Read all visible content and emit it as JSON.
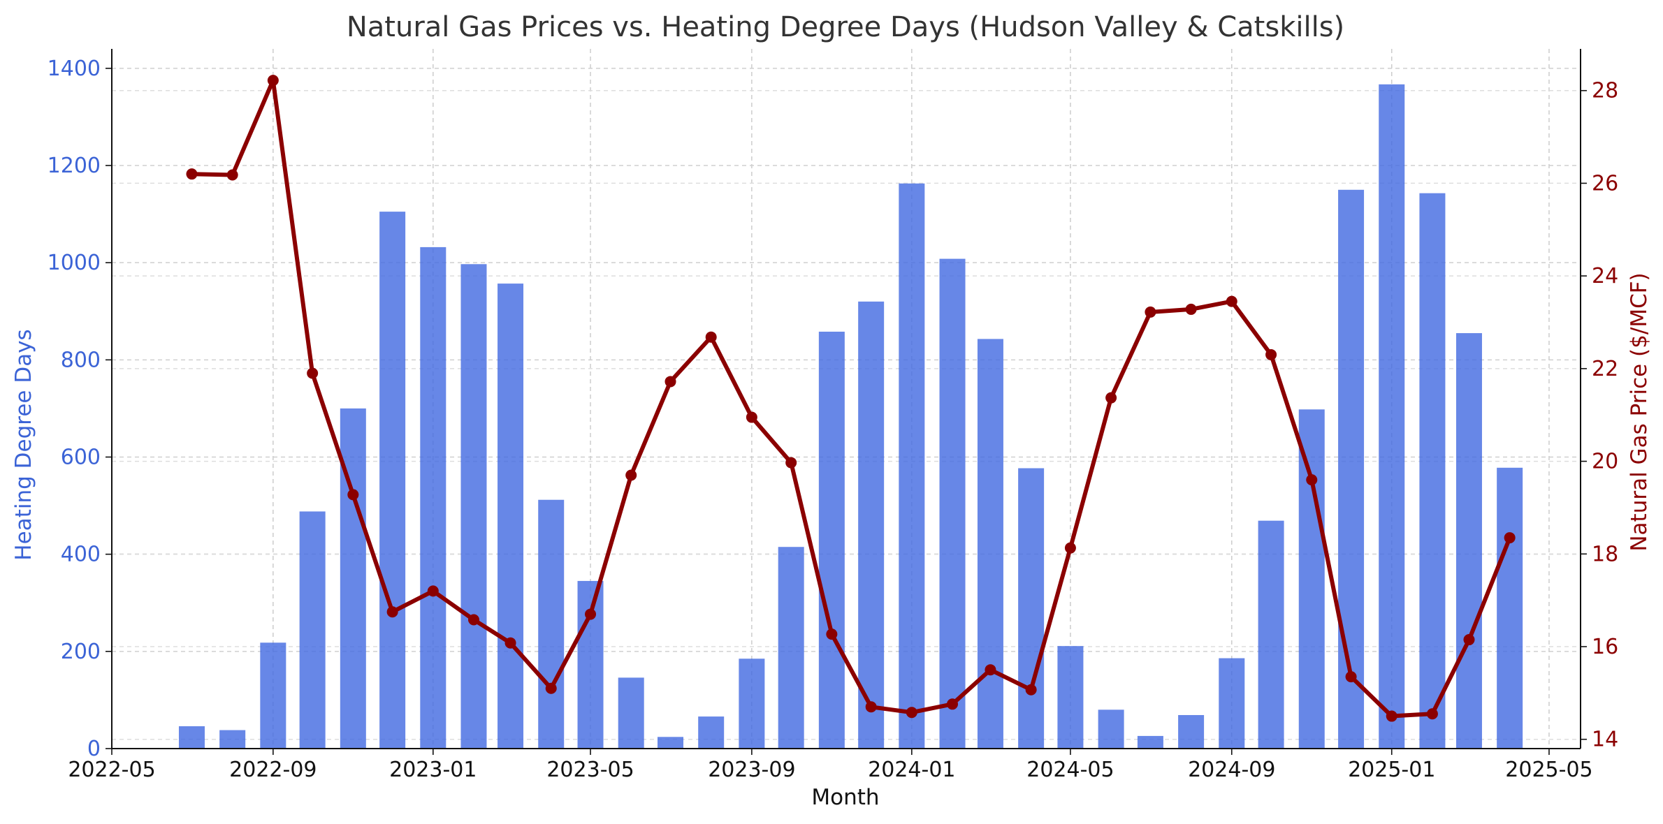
{
  "chart_data": {
    "type": "bar+line",
    "title": "Natural Gas Prices vs. Heating Degree Days (Hudson Valley & Catskills)",
    "xlabel": "Month",
    "ylabel_left": "Heating Degree Days",
    "ylabel_right": "Natural Gas Price ($/MCF)",
    "ylim_left": [
      0,
      1440
    ],
    "ylim_right": [
      13.8,
      28.9
    ],
    "xlim": [
      "2022-05-01",
      "2025-05-25"
    ],
    "grid": true,
    "x_ticks": [
      "2022-05",
      "2022-09",
      "2023-01",
      "2023-05",
      "2023-09",
      "2024-01",
      "2024-05",
      "2024-09",
      "2025-01",
      "2025-05"
    ],
    "y_ticks_left": [
      0,
      200,
      400,
      600,
      800,
      1000,
      1200,
      1400
    ],
    "y_ticks_right": [
      14,
      16,
      18,
      20,
      22,
      24,
      26,
      28
    ],
    "x": [
      "2022-07",
      "2022-08",
      "2022-09",
      "2022-10",
      "2022-11",
      "2022-12",
      "2023-01",
      "2023-02",
      "2023-03",
      "2023-04",
      "2023-05",
      "2023-06",
      "2023-07",
      "2023-08",
      "2023-09",
      "2023-10",
      "2023-11",
      "2023-12",
      "2024-01",
      "2024-02",
      "2024-03",
      "2024-04",
      "2024-05",
      "2024-06",
      "2024-07",
      "2024-08",
      "2024-09",
      "2024-10",
      "2024-11",
      "2024-12",
      "2025-01",
      "2025-02",
      "2025-03",
      "2025-04"
    ],
    "series": [
      {
        "name": "Heating Degree Days",
        "type": "bar",
        "axis": "left",
        "color": "#4169e1",
        "values": [
          46,
          38,
          218,
          488,
          700,
          1105,
          1032,
          997,
          957,
          512,
          345,
          146,
          24,
          66,
          185,
          415,
          858,
          920,
          1163,
          1008,
          843,
          577,
          211,
          80,
          26,
          69,
          186,
          469,
          698,
          1150,
          1367,
          1143,
          855,
          578
        ]
      },
      {
        "name": "Natural Gas Price",
        "type": "line",
        "axis": "right",
        "color": "#8b0000",
        "values": [
          26.2,
          26.18,
          28.22,
          21.9,
          19.28,
          16.75,
          17.2,
          16.58,
          16.08,
          15.1,
          16.7,
          19.7,
          21.72,
          22.68,
          20.95,
          19.97,
          16.27,
          14.7,
          14.58,
          14.76,
          15.5,
          15.07,
          18.13,
          21.37,
          23.22,
          23.28,
          23.45,
          22.3,
          19.6,
          15.35,
          14.5,
          14.55,
          16.15,
          18.35
        ]
      }
    ]
  }
}
